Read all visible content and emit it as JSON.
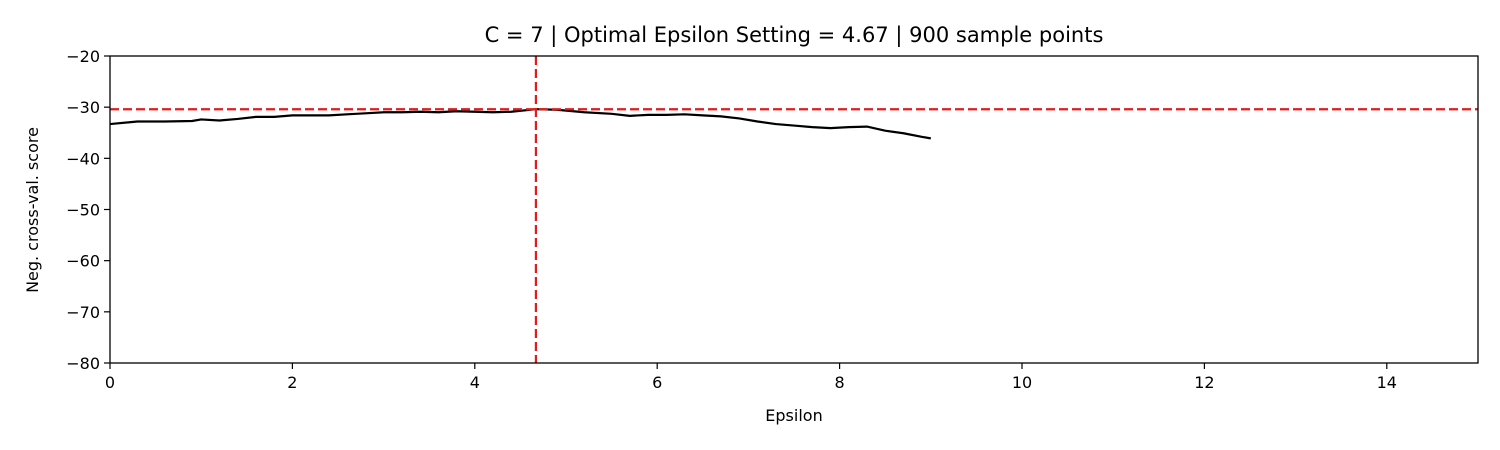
{
  "chart_data": {
    "type": "line",
    "title": "C = 7 | Optimal Epsilon Setting = 4.67 | 900 sample points",
    "xlabel": "Epsilon",
    "ylabel": "Neg. cross-val. score",
    "xlim": [
      0,
      15
    ],
    "ylim": [
      -80,
      -20
    ],
    "xticks": [
      0,
      2,
      4,
      6,
      8,
      10,
      12,
      14
    ],
    "yticks": [
      -80,
      -70,
      -60,
      -50,
      -40,
      -30,
      -20
    ],
    "xtick_labels": [
      "0",
      "2",
      "4",
      "6",
      "8",
      "10",
      "12",
      "14"
    ],
    "ytick_labels": [
      "−80",
      "−70",
      "−60",
      "−50",
      "−40",
      "−30",
      "−20"
    ],
    "grid": false,
    "series": [
      {
        "color": "#000000",
        "x": [
          0,
          0.3,
          0.6,
          0.9,
          1.0,
          1.2,
          1.4,
          1.6,
          1.8,
          2.0,
          2.2,
          2.4,
          2.6,
          2.8,
          3.0,
          3.2,
          3.4,
          3.6,
          3.8,
          4.0,
          4.2,
          4.4,
          4.67,
          4.9,
          5.2,
          5.5,
          5.7,
          5.9,
          6.1,
          6.3,
          6.5,
          6.7,
          6.9,
          7.1,
          7.3,
          7.5,
          7.7,
          7.9,
          8.1,
          8.3,
          8.5,
          8.7,
          8.9,
          9.0
        ],
        "y": [
          -33.3,
          -32.8,
          -32.8,
          -32.7,
          -32.4,
          -32.6,
          -32.3,
          -31.9,
          -31.9,
          -31.6,
          -31.6,
          -31.6,
          -31.4,
          -31.2,
          -31.0,
          -31.0,
          -30.9,
          -31.0,
          -30.8,
          -30.9,
          -31.0,
          -30.9,
          -30.4,
          -30.5,
          -31.0,
          -31.3,
          -31.7,
          -31.5,
          -31.5,
          -31.4,
          -31.6,
          -31.8,
          -32.2,
          -32.8,
          -33.3,
          -33.6,
          -33.9,
          -34.1,
          -33.9,
          -33.8,
          -34.6,
          -35.1,
          -35.8,
          -36.1
        ]
      }
    ],
    "reference_lines": [
      {
        "orientation": "vertical",
        "value": 4.67,
        "color": "#e41a1c",
        "style": "dashed"
      },
      {
        "orientation": "horizontal",
        "value": -30.4,
        "color": "#e41a1c",
        "style": "dashed"
      }
    ]
  }
}
